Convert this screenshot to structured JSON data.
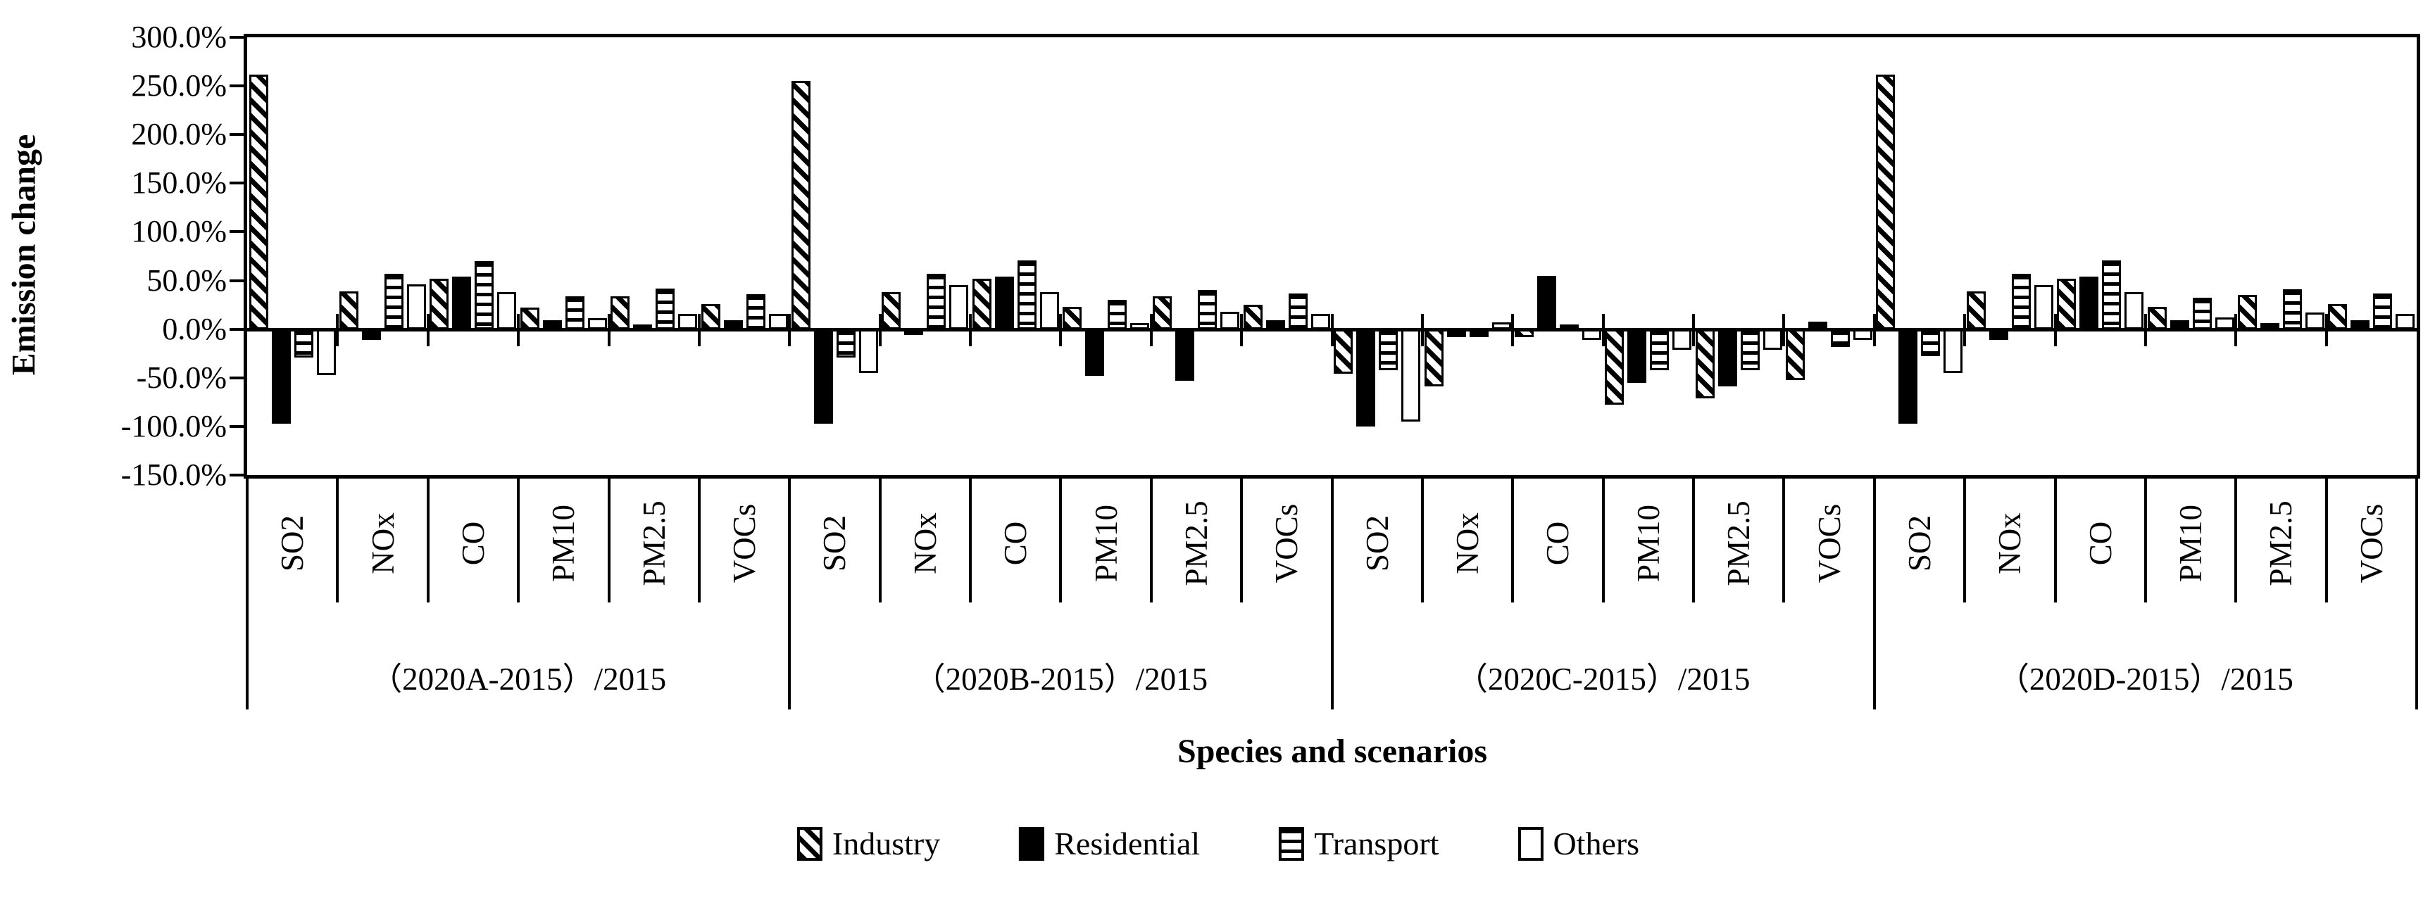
{
  "chart_data": {
    "type": "bar",
    "title": "",
    "ylabel": "Emission change",
    "xlabel": "Species and scenarios",
    "ylim": [
      -150,
      300
    ],
    "ytick_step": 50,
    "ytick_labels": [
      "300.0%",
      "250.0%",
      "200.0%",
      "150.0%",
      "100.0%",
      "50.0%",
      "0.0%",
      "-50.0%",
      "-100.0%",
      "-150.0%"
    ],
    "species": [
      "SO2",
      "NOx",
      "CO",
      "PM10",
      "PM2.5",
      "VOCs"
    ],
    "scenarios": [
      "（2020A-2015）/2015",
      "（2020B-2015）/2015",
      "（2020C-2015）/2015",
      "（2020D-2015）/2015"
    ],
    "legend_position": "bottom",
    "grid": false,
    "series": [
      {
        "name": "Industry",
        "pattern": "diagonal-hatch",
        "values_pct_by_scenario": [
          [
            262,
            39,
            52,
            22,
            34,
            26
          ],
          [
            255,
            38,
            52,
            23,
            34,
            25
          ],
          [
            -46,
            -59,
            -8,
            -78,
            -71,
            -52
          ],
          [
            262,
            39,
            52,
            23,
            35,
            26
          ]
        ]
      },
      {
        "name": "Residential",
        "pattern": "solid-black",
        "values_pct_by_scenario": [
          [
            -97,
            -11,
            54,
            9,
            5,
            9
          ],
          [
            -97,
            -6,
            54,
            -48,
            -53,
            9
          ],
          [
            -100,
            -8,
            55,
            -55,
            -59,
            8
          ],
          [
            -97,
            -11,
            54,
            9,
            6,
            9
          ]
        ]
      },
      {
        "name": "Transport",
        "pattern": "horizontal-lines",
        "values_pct_by_scenario": [
          [
            -29,
            57,
            70,
            34,
            42,
            36
          ],
          [
            -29,
            57,
            71,
            30,
            40,
            37
          ],
          [
            -42,
            -8,
            5,
            -42,
            -42,
            -18
          ],
          [
            -28,
            57,
            71,
            32,
            41,
            37
          ]
        ]
      },
      {
        "name": "Others",
        "pattern": "white",
        "values_pct_by_scenario": [
          [
            -47,
            46,
            38,
            11,
            16,
            16
          ],
          [
            -45,
            45,
            38,
            6,
            18,
            16
          ],
          [
            -95,
            7,
            -11,
            -21,
            -21,
            -11
          ],
          [
            -45,
            45,
            38,
            12,
            17,
            16
          ]
        ]
      }
    ]
  }
}
